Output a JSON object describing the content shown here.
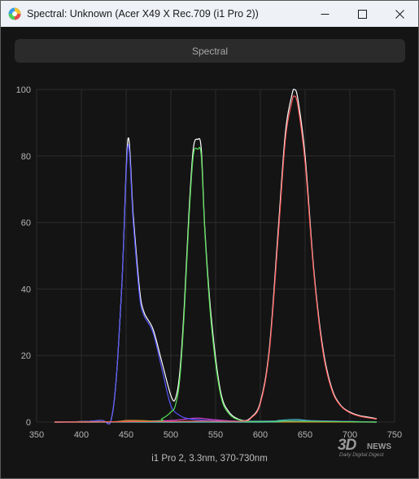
{
  "window": {
    "title": "Spectral: Unknown (Acer X49 X Rec.709 (i1 Pro 2))",
    "app_icon": "color-wheel-icon",
    "controls": [
      "minimize-icon",
      "maximize-icon",
      "close-icon"
    ]
  },
  "toolbar": {
    "tab_label": "Spectral"
  },
  "caption": "i1 Pro 2, 3.3nm, 370-730nm",
  "watermark": {
    "main": "3D",
    "news": "NEWS",
    "sub": "Daily Digital Digest"
  },
  "colors": {
    "background": "#141414",
    "grid": "#2c2c2c",
    "red": "#ff5a5a",
    "green": "#55e055",
    "blue": "#5555ff",
    "white": "#ffffff"
  },
  "chart_data": {
    "type": "line",
    "xlim": [
      350,
      750
    ],
    "ylim": [
      0,
      100
    ],
    "xticks": [
      350,
      400,
      450,
      500,
      550,
      600,
      650,
      700,
      750
    ],
    "yticks": [
      0,
      20,
      40,
      60,
      80,
      100
    ],
    "grid": true,
    "series": [
      {
        "color": "#ffffff",
        "x": [
          370,
          420,
          435,
          445,
          452,
          458,
          465,
          470,
          480,
          490,
          500,
          505,
          510,
          515,
          520,
          525,
          530,
          534,
          538,
          545,
          555,
          565,
          580,
          590,
          600,
          610,
          620,
          628,
          635,
          638,
          642,
          650,
          660,
          670,
          680,
          690,
          700,
          710,
          720,
          730
        ],
        "y": [
          0,
          0.5,
          3,
          40,
          85,
          62,
          40,
          33,
          28,
          18,
          8,
          7,
          15,
          35,
          62,
          82,
          85,
          82,
          58,
          32,
          10,
          3,
          0.5,
          1.5,
          6,
          22,
          58,
          87,
          98,
          100,
          97,
          80,
          45,
          22,
          10,
          5,
          3,
          2,
          1.5,
          1
        ]
      },
      {
        "color": "#5555ff",
        "x": [
          370,
          420,
          435,
          445,
          452,
          458,
          465,
          470,
          480,
          490,
          500,
          510,
          520,
          540,
          560,
          600,
          640,
          680,
          730
        ],
        "y": [
          0,
          0.5,
          3,
          40,
          83,
          60,
          38,
          32,
          27,
          16,
          5,
          2,
          1,
          0.5,
          0.3,
          0.3,
          0.4,
          0.3,
          0
        ]
      },
      {
        "color": "#55e055",
        "x": [
          370,
          480,
          490,
          500,
          505,
          510,
          515,
          520,
          525,
          530,
          534,
          538,
          545,
          555,
          565,
          580,
          600,
          640,
          730
        ],
        "y": [
          0,
          0.3,
          1,
          3,
          5,
          13,
          33,
          60,
          80,
          82,
          80,
          57,
          30,
          9,
          2.5,
          0.4,
          0.2,
          0.3,
          0
        ]
      },
      {
        "color": "#ff5a5a",
        "x": [
          370,
          500,
          540,
          580,
          590,
          600,
          610,
          620,
          628,
          635,
          638,
          642,
          650,
          660,
          670,
          680,
          690,
          700,
          710,
          720,
          730
        ],
        "y": [
          0,
          0.2,
          0.3,
          0.3,
          1.3,
          5.5,
          21,
          56,
          85,
          96,
          98,
          95,
          78,
          44,
          21,
          9.5,
          4.8,
          2.8,
          1.8,
          1.3,
          0.9
        ]
      },
      {
        "color": "#d040d0",
        "x": [
          370,
          430,
          450,
          470,
          500,
          520,
          530,
          545,
          570,
          600,
          640,
          730
        ],
        "y": [
          0,
          0,
          0.3,
          0.3,
          0.5,
          1,
          1.2,
          0.8,
          0.3,
          0.2,
          0.2,
          0
        ]
      },
      {
        "color": "#c08020",
        "x": [
          370,
          430,
          450,
          465,
          480,
          500,
          730
        ],
        "y": [
          0,
          0,
          0.5,
          0.5,
          0.3,
          0,
          0
        ]
      },
      {
        "color": "#40c0c0",
        "x": [
          370,
          600,
          620,
          640,
          660,
          730
        ],
        "y": [
          0,
          0,
          0.5,
          0.8,
          0.4,
          0
        ]
      }
    ]
  }
}
